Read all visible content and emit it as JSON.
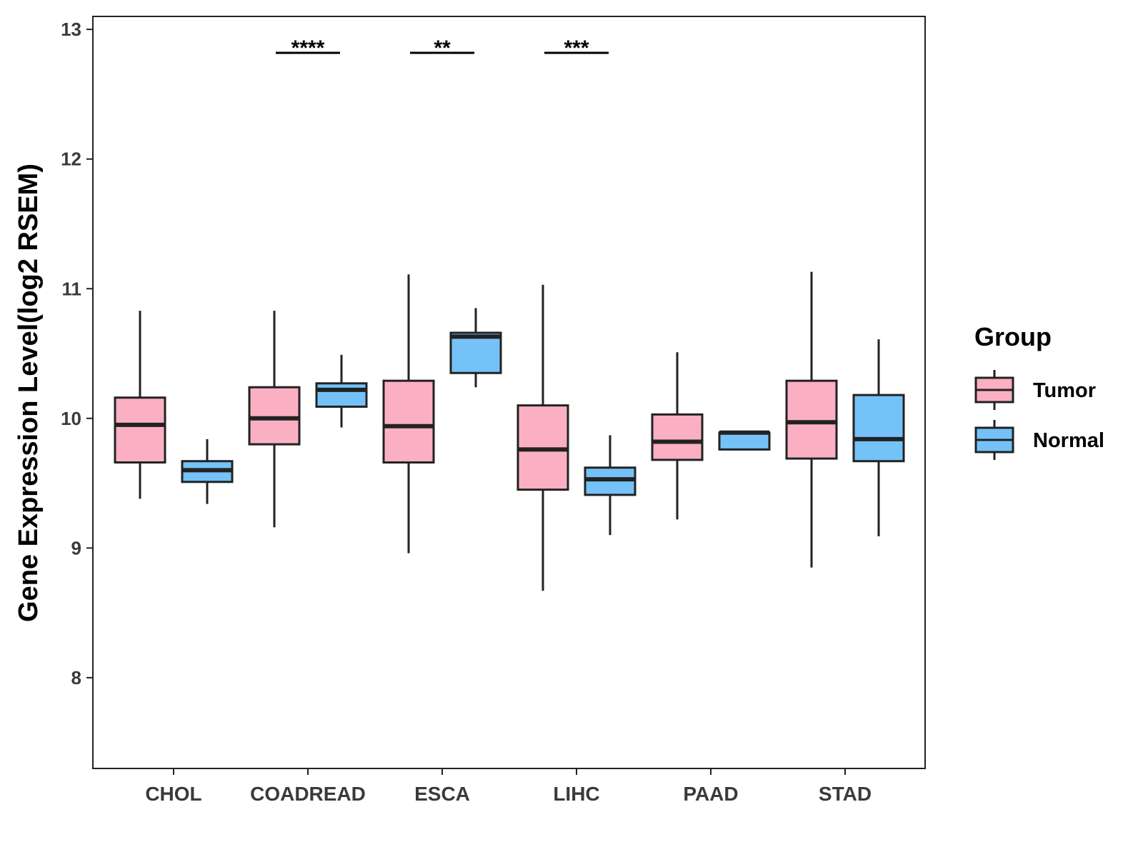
{
  "chart_data": {
    "type": "boxplot",
    "title": "",
    "xlabel": "",
    "ylabel": "Gene Expression Level(log2 RSEM)",
    "ylim": [
      7.3,
      13.1
    ],
    "yticks": [
      8,
      9,
      10,
      11,
      12,
      13
    ],
    "grid": false,
    "legend": {
      "title": "Group",
      "position": "right"
    },
    "categories": [
      "CHOL",
      "COADREAD",
      "ESCA",
      "LIHC",
      "PAAD",
      "STAD"
    ],
    "series": [
      {
        "name": "Tumor",
        "color": "#FAB0C2",
        "boxes": [
          {
            "min": 9.38,
            "q1": 9.66,
            "median": 9.95,
            "q3": 10.16,
            "max": 10.83
          },
          {
            "min": 9.16,
            "q1": 9.8,
            "median": 10.0,
            "q3": 10.24,
            "max": 10.83
          },
          {
            "min": 8.96,
            "q1": 9.66,
            "median": 9.94,
            "q3": 10.29,
            "max": 11.11
          },
          {
            "min": 8.67,
            "q1": 9.45,
            "median": 9.76,
            "q3": 10.1,
            "max": 11.03
          },
          {
            "min": 9.22,
            "q1": 9.68,
            "median": 9.82,
            "q3": 10.03,
            "max": 10.51
          },
          {
            "min": 8.85,
            "q1": 9.69,
            "median": 9.97,
            "q3": 10.29,
            "max": 11.13
          }
        ]
      },
      {
        "name": "Normal",
        "color": "#74C2F8",
        "boxes": [
          {
            "min": 9.34,
            "q1": 9.51,
            "median": 9.6,
            "q3": 9.67,
            "max": 9.84
          },
          {
            "min": 9.93,
            "q1": 10.09,
            "median": 10.22,
            "q3": 10.27,
            "max": 10.49
          },
          {
            "min": 10.24,
            "q1": 10.35,
            "median": 10.63,
            "q3": 10.66,
            "max": 10.85
          },
          {
            "min": 9.1,
            "q1": 9.41,
            "median": 9.53,
            "q3": 9.62,
            "max": 9.87
          },
          {
            "min": 9.76,
            "q1": 9.76,
            "median": 9.89,
            "q3": 9.89,
            "max": 9.89
          },
          {
            "min": 9.09,
            "q1": 9.67,
            "median": 9.84,
            "q3": 10.18,
            "max": 10.61
          }
        ]
      }
    ],
    "annotations": [
      {
        "category": "COADREAD",
        "label": "****"
      },
      {
        "category": "ESCA",
        "label": "**"
      },
      {
        "category": "LIHC",
        "label": "***"
      }
    ]
  }
}
